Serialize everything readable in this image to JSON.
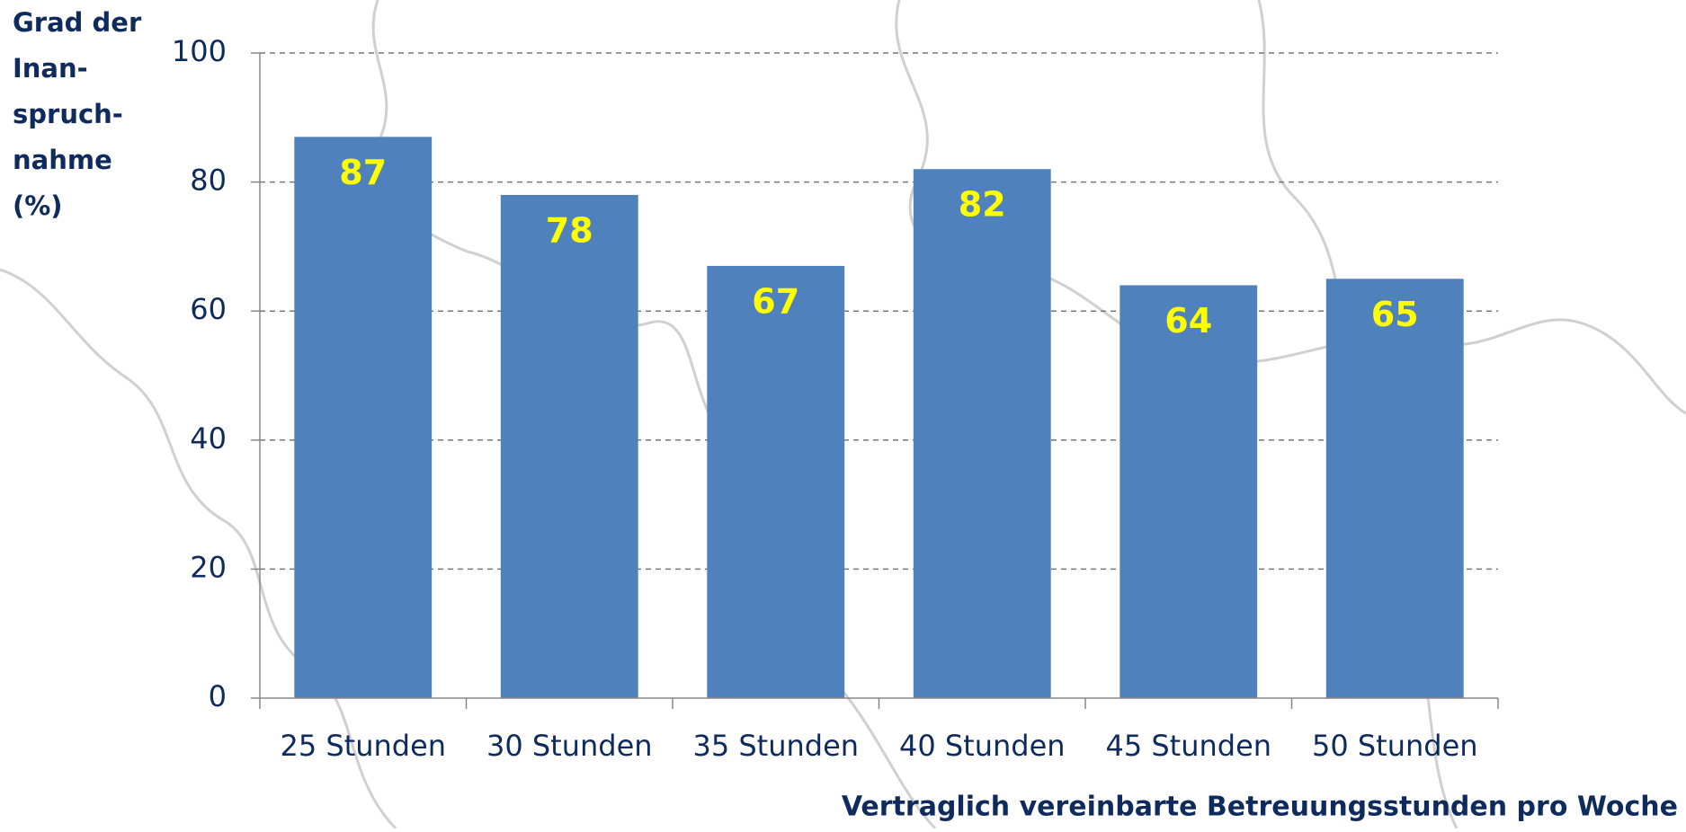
{
  "chart_data": {
    "type": "bar",
    "ylabel": [
      "Grad der",
      "Inan-",
      "spruch-",
      "nahme",
      "(%)"
    ],
    "xlabel": "Vertraglich vereinbarte Betreuungsstunden pro Woche",
    "categories": [
      "25 Stunden",
      "30 Stunden",
      "35 Stunden",
      "40 Stunden",
      "45 Stunden",
      "50 Stunden"
    ],
    "values": [
      87,
      78,
      67,
      82,
      64,
      65
    ],
    "color": "#4f81bd",
    "label_color": "#ffff00",
    "ylim": [
      0,
      100
    ],
    "yticks": [
      0,
      20,
      40,
      60,
      80,
      100
    ],
    "grid": true
  }
}
